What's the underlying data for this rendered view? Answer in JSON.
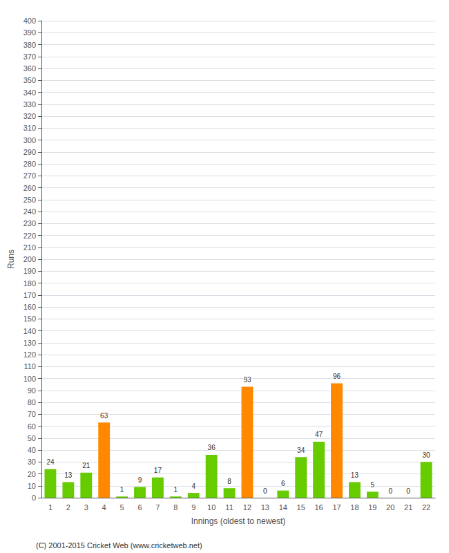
{
  "chart_data": {
    "type": "bar",
    "xlabel": "Innings (oldest to newest)",
    "ylabel": "Runs",
    "categories": [
      1,
      2,
      3,
      4,
      5,
      6,
      7,
      8,
      9,
      10,
      11,
      12,
      13,
      14,
      15,
      16,
      17,
      18,
      19,
      20,
      21,
      22
    ],
    "values": [
      24,
      13,
      21,
      63,
      1,
      9,
      17,
      1,
      4,
      36,
      8,
      93,
      0,
      6,
      34,
      47,
      96,
      13,
      5,
      0,
      0,
      30
    ],
    "colors": [
      "#66cc00",
      "#66cc00",
      "#66cc00",
      "#ff8800",
      "#66cc00",
      "#66cc00",
      "#66cc00",
      "#66cc00",
      "#66cc00",
      "#66cc00",
      "#66cc00",
      "#ff8800",
      "#66cc00",
      "#66cc00",
      "#66cc00",
      "#66cc00",
      "#ff8800",
      "#66cc00",
      "#66cc00",
      "#66cc00",
      "#66cc00",
      "#66cc00"
    ],
    "ylim": [
      0,
      400
    ],
    "yticks": [
      0,
      10,
      20,
      30,
      40,
      50,
      60,
      70,
      80,
      90,
      100,
      110,
      120,
      130,
      140,
      150,
      160,
      170,
      180,
      190,
      200,
      210,
      220,
      230,
      240,
      250,
      260,
      270,
      280,
      290,
      300,
      310,
      320,
      330,
      340,
      350,
      360,
      370,
      380,
      390,
      400
    ],
    "grid": true,
    "data_labels": true,
    "annotations": [
      "(C) 2001-2015 Cricket Web (www.cricketweb.net)"
    ]
  }
}
